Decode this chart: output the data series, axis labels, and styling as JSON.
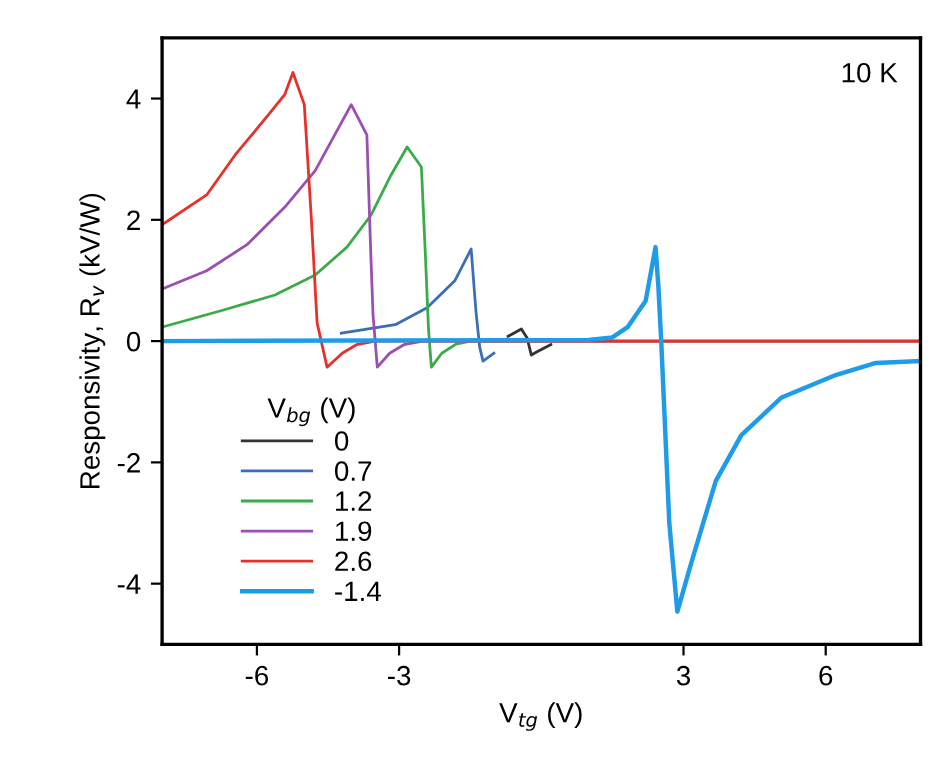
{
  "chart_data": {
    "type": "line",
    "xlabel": "V$_{tg}$ (V)",
    "ylabel": "Responsivity, R$_{v}$ (kV/W)",
    "legend_title": "V$_{bg}$ (V)",
    "annotations": [
      "10 K"
    ],
    "xlim": [
      -8,
      8
    ],
    "ylim": [
      -5,
      5
    ],
    "xticks": [
      -6,
      -3,
      3,
      6
    ],
    "yticks": [
      -4,
      -2,
      0,
      2,
      4
    ],
    "grid": false,
    "legend": "bottom left",
    "marker": "none",
    "line_style": "solid",
    "series": [
      {
        "name": "0",
        "color": "#333333",
        "x": [
          -0.7,
          -0.42,
          -0.3,
          -0.21,
          -0.1,
          0.2
        ],
        "values": [
          0.08,
          0.2,
          0.05,
          -0.23,
          -0.18,
          -0.06
        ]
      },
      {
        "name": "0.7",
        "color": "#3c6eb4",
        "x": [
          -4.22,
          -3.08,
          -2.41,
          -1.82,
          -1.48,
          -1.38,
          -1.3,
          -1.23,
          -1.0
        ],
        "values": [
          0.13,
          0.27,
          0.55,
          1.0,
          1.52,
          0.5,
          -0.1,
          -0.33,
          -0.2
        ]
      },
      {
        "name": "1.2",
        "color": "#3aab48",
        "x": [
          -8,
          -6.76,
          -5.62,
          -4.77,
          -4.1,
          -3.59,
          -3.17,
          -2.83,
          -2.53,
          -2.45,
          -2.38,
          -2.32,
          -2.1,
          -1.8,
          -1.5,
          8
        ],
        "values": [
          0.23,
          0.5,
          0.76,
          1.09,
          1.55,
          2.08,
          2.74,
          3.2,
          2.87,
          1.5,
          0.2,
          -0.43,
          -0.2,
          -0.05,
          0,
          0
        ]
      },
      {
        "name": "1.9",
        "color": "#9b4fb0",
        "x": [
          -8,
          -7.06,
          -6.21,
          -5.41,
          -4.77,
          -4.01,
          -3.68,
          -3.6,
          -3.55,
          -3.46,
          -3.2,
          -2.9,
          -2.5,
          8
        ],
        "values": [
          0.86,
          1.16,
          1.59,
          2.21,
          2.81,
          3.9,
          3.4,
          1.5,
          0.43,
          -0.43,
          -0.2,
          -0.06,
          0,
          0
        ]
      },
      {
        "name": "2.6",
        "color": "#e8302a",
        "x": [
          -8,
          -7.06,
          -6.46,
          -5.79,
          -5.41,
          -5.24,
          -5.0,
          -4.85,
          -4.73,
          -4.52,
          -4.2,
          -3.9,
          -3.5,
          8
        ],
        "values": [
          1.92,
          2.41,
          3.07,
          3.7,
          4.07,
          4.43,
          3.9,
          2.0,
          0.3,
          -0.43,
          -0.2,
          -0.06,
          0,
          0
        ]
      },
      {
        "name": "-1.4",
        "color": "#1e9be9",
        "x": [
          -8,
          1.0,
          1.5,
          1.82,
          2.2,
          2.41,
          2.47,
          2.53,
          2.7,
          2.87,
          3.17,
          3.68,
          4.22,
          5.07,
          6.21,
          7.06,
          8
        ],
        "values": [
          0,
          0.02,
          0.06,
          0.23,
          0.66,
          1.55,
          0.9,
          0,
          -3.0,
          -4.46,
          -3.64,
          -2.31,
          -1.55,
          -0.93,
          -0.56,
          -0.36,
          -0.33
        ]
      }
    ]
  }
}
